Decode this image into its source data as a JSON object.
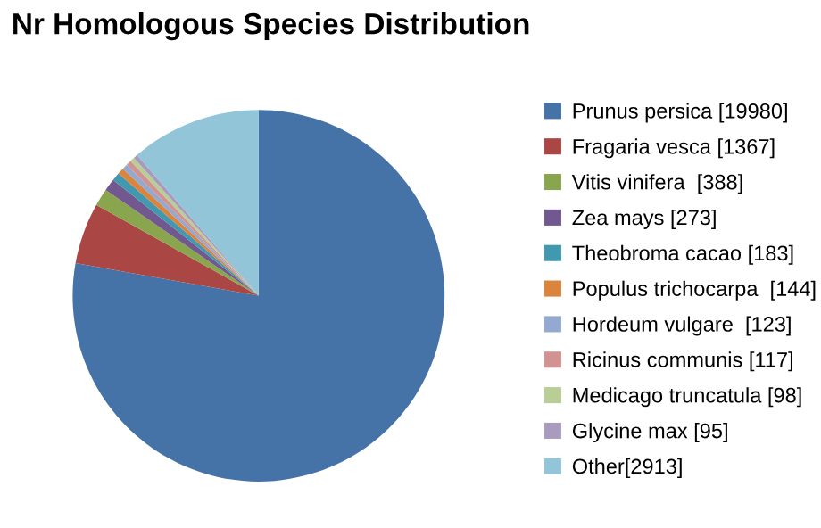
{
  "chart_data": {
    "type": "pie",
    "title": "Nr Homologous Species Distribution",
    "categories": [
      "Prunus persica [19980]",
      "Fragaria vesca [1367]",
      "Vitis vinifera  [388]",
      "Zea mays [273]",
      "Theobroma cacao [183]",
      "Populus trichocarpa  [144]",
      "Hordeum vulgare  [123]",
      "Ricinus communis [117]",
      "Medicago truncatula [98]",
      "Glycine max [95]",
      "Other[2913]"
    ],
    "values": [
      19980,
      1367,
      388,
      273,
      183,
      144,
      123,
      117,
      98,
      95,
      2913
    ],
    "colors": [
      "#4572a7",
      "#aa4643",
      "#89a54e",
      "#71588f",
      "#4198af",
      "#db843d",
      "#93a9cf",
      "#d19392",
      "#b9cd96",
      "#a99bbd",
      "#92c5d7"
    ],
    "legend": "right"
  }
}
